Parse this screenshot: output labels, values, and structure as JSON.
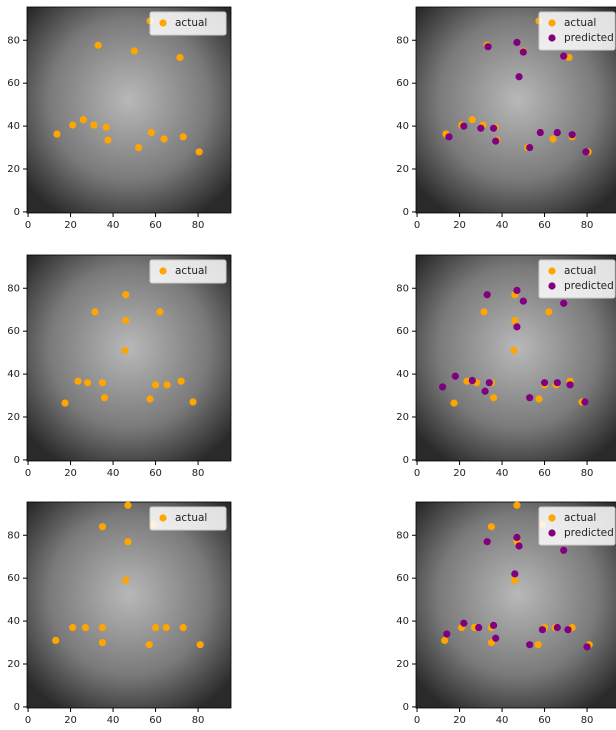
{
  "chart_data": [
    {
      "type": "scatter",
      "xlim": [
        -0.5,
        95.5
      ],
      "ylim": [
        95.5,
        -0.5
      ],
      "xticks": [
        0,
        20,
        40,
        60,
        80
      ],
      "yticks": [
        0,
        20,
        40,
        60,
        80
      ],
      "legend": "upper right",
      "series": [
        {
          "name": "actual",
          "color": "#ffa500",
          "x": [
            13.6,
            21,
            26,
            31,
            37.6,
            36.7,
            52,
            58,
            64,
            73,
            80.5,
            33,
            50,
            71.5,
            57.4
          ],
          "y": [
            36.3,
            40.5,
            43,
            40.5,
            33.5,
            39.5,
            30,
            37,
            34,
            35,
            28,
            77.7,
            75,
            72,
            89
          ]
        }
      ]
    },
    {
      "type": "scatter",
      "xlim": [
        -0.5,
        95.5
      ],
      "ylim": [
        95.5,
        -0.5
      ],
      "xticks": [
        0,
        20,
        40,
        60,
        80
      ],
      "yticks": [
        0,
        20,
        40,
        60,
        80
      ],
      "legend": "upper right",
      "series": [
        {
          "name": "actual",
          "color": "#ffa500",
          "x": [
            13.6,
            21,
            26,
            31,
            37.6,
            36.7,
            52,
            58,
            64,
            73,
            80.5,
            33,
            50,
            71.5,
            57.4
          ],
          "y": [
            36.3,
            40.5,
            43,
            40.5,
            33.5,
            39.5,
            30,
            37,
            34,
            35,
            28,
            77.7,
            75,
            72,
            89
          ]
        },
        {
          "name": "predicted",
          "color": "#800080",
          "x": [
            15,
            22,
            30,
            37,
            36,
            53,
            58,
            66,
            73,
            79.5,
            48,
            33.4,
            47,
            50,
            69
          ],
          "y": [
            35,
            40,
            39,
            33,
            39,
            30,
            37,
            37,
            36,
            28,
            63,
            77,
            79,
            74.5,
            72.6
          ]
        }
      ]
    },
    {
      "type": "scatter",
      "xlim": [
        -0.5,
        95.5
      ],
      "ylim": [
        95.5,
        -0.5
      ],
      "xticks": [
        0,
        20,
        40,
        60,
        80
      ],
      "yticks": [
        0,
        20,
        40,
        60,
        80
      ],
      "legend": "upper right",
      "series": [
        {
          "name": "actual",
          "color": "#ffa500",
          "x": [
            17.4,
            23.5,
            28,
            36,
            35,
            57.4,
            60,
            65.4,
            72,
            77.6,
            45.6,
            31.5,
            46,
            62,
            46
          ],
          "y": [
            26.5,
            36.7,
            36,
            29,
            36,
            28.4,
            35,
            35,
            36.7,
            27,
            51,
            69,
            65,
            69,
            77
          ]
        }
      ]
    },
    {
      "type": "scatter",
      "xlim": [
        -0.5,
        95.5
      ],
      "ylim": [
        95.5,
        -0.5
      ],
      "xticks": [
        0,
        20,
        40,
        60,
        80
      ],
      "yticks": [
        0,
        20,
        40,
        60,
        80
      ],
      "legend": "upper right",
      "series": [
        {
          "name": "actual",
          "color": "#ffa500",
          "x": [
            17.4,
            23.5,
            28,
            36,
            35,
            57.4,
            60,
            65.4,
            72,
            77.6,
            45.6,
            31.5,
            46,
            62,
            46
          ],
          "y": [
            26.5,
            36.7,
            36,
            29,
            36,
            28.4,
            35,
            35,
            36.7,
            27,
            51,
            69,
            65,
            69,
            77
          ]
        },
        {
          "name": "predicted",
          "color": "#800080",
          "x": [
            12,
            18,
            26,
            32,
            34,
            53,
            60,
            66,
            79,
            72,
            47,
            33,
            50,
            47,
            69
          ],
          "y": [
            34,
            39,
            37,
            32,
            36,
            29,
            36,
            36,
            27,
            35,
            62,
            77,
            74,
            79,
            73
          ]
        }
      ]
    },
    {
      "type": "scatter",
      "xlim": [
        -0.5,
        95.5
      ],
      "ylim": [
        95.5,
        -0.5
      ],
      "xticks": [
        0,
        20,
        40,
        60,
        80
      ],
      "yticks": [
        0,
        20,
        40,
        60,
        80
      ],
      "legend": "upper right",
      "series": [
        {
          "name": "actual",
          "color": "#ffa500",
          "x": [
            13,
            21,
            27,
            35,
            35,
            57,
            60,
            65,
            73,
            81,
            46,
            35,
            47,
            59,
            47
          ],
          "y": [
            31,
            37,
            37,
            37,
            30,
            29,
            37,
            37,
            37,
            29,
            59,
            84,
            77,
            85,
            94
          ]
        }
      ]
    },
    {
      "type": "scatter",
      "xlim": [
        -0.5,
        95.5
      ],
      "ylim": [
        95.5,
        -0.5
      ],
      "xticks": [
        0,
        20,
        40,
        60,
        80
      ],
      "yticks": [
        0,
        20,
        40,
        60,
        80
      ],
      "legend": "upper right",
      "series": [
        {
          "name": "actual",
          "color": "#ffa500",
          "x": [
            13,
            21,
            27,
            35,
            35,
            57,
            60,
            65,
            73,
            81,
            46,
            35,
            47,
            59,
            47
          ],
          "y": [
            31,
            37,
            37,
            37,
            30,
            29,
            37,
            37,
            37,
            29,
            59,
            84,
            77,
            85,
            94
          ]
        },
        {
          "name": "predicted",
          "color": "#800080",
          "x": [
            14,
            22,
            29,
            37,
            36,
            53,
            59,
            66,
            71,
            80,
            46,
            33,
            48,
            47,
            69
          ],
          "y": [
            34,
            39,
            37,
            32,
            38,
            29,
            36,
            37,
            36,
            28,
            62,
            77,
            75,
            79,
            73
          ]
        }
      ]
    }
  ]
}
